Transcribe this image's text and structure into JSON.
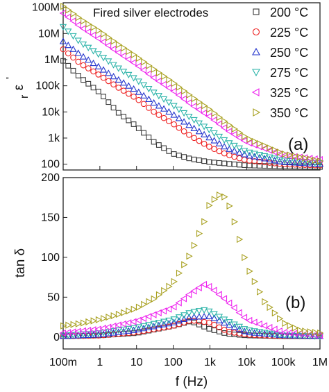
{
  "chart_data": [
    {
      "type": "scatter",
      "panel_label": "(a)",
      "ylabel_main": "ε",
      "ylabel_sub": "r",
      "ylabel_sup": "'",
      "annotation": "Fired silver electrodes",
      "x_scale": "log",
      "y_scale": "log",
      "xlim": [
        0.1,
        1000000
      ],
      "ylim": [
        60,
        150000000
      ],
      "y_ticks": [
        {
          "value": 100,
          "label": "100"
        },
        {
          "value": 1000,
          "label": "1k"
        },
        {
          "value": 10000,
          "label": "10k"
        },
        {
          "value": 100000,
          "label": "100k"
        },
        {
          "value": 1000000,
          "label": "1M"
        },
        {
          "value": 10000000,
          "label": "10M"
        },
        {
          "value": 100000000,
          "label": "100M"
        }
      ],
      "legend_placement": "top-right",
      "series": [
        {
          "name": "200 °C",
          "marker": "square",
          "color": "#3a3a3a",
          "x": [
            0.1,
            0.3,
            1,
            3,
            10,
            30,
            100,
            300,
            1000,
            10000,
            100000,
            1000000
          ],
          "y": [
            900000,
            200000,
            55000,
            10000,
            2800,
            700,
            250,
            160,
            120,
            90,
            82,
            78
          ]
        },
        {
          "name": "225 °C",
          "marker": "circle",
          "color": "#ee2222",
          "x": [
            0.1,
            0.3,
            1,
            3,
            10,
            30,
            100,
            300,
            1000,
            3000,
            10000,
            100000,
            1000000
          ],
          "y": [
            2500000,
            700000,
            250000,
            90000,
            33000,
            10000,
            3500,
            1200,
            450,
            230,
            140,
            100,
            90
          ]
        },
        {
          "name": "250 °C",
          "marker": "triangle-up",
          "color": "#2233cc",
          "x": [
            0.1,
            0.3,
            1,
            3,
            10,
            30,
            100,
            300,
            1000,
            3000,
            10000,
            100000,
            1000000
          ],
          "y": [
            5000000,
            1500000,
            500000,
            180000,
            65000,
            22000,
            8000,
            2800,
            1000,
            400,
            220,
            120,
            100
          ]
        },
        {
          "name": "275 °C",
          "marker": "triangle-down",
          "color": "#2ab3a8",
          "x": [
            0.1,
            0.3,
            1,
            3,
            10,
            30,
            100,
            300,
            1000,
            3000,
            10000,
            100000,
            1000000
          ],
          "y": [
            18000000,
            4500000,
            1500000,
            500000,
            170000,
            55000,
            18000,
            6000,
            2000,
            700,
            300,
            140,
            110
          ]
        },
        {
          "name": "325 °C",
          "marker": "triangle-left",
          "color": "#ee22ee",
          "x": [
            0.1,
            0.3,
            1,
            3,
            10,
            30,
            100,
            300,
            1000,
            3000,
            10000,
            100000,
            1000000
          ],
          "y": [
            60000000,
            18000000,
            6000000,
            2000000,
            650000,
            200000,
            65000,
            20000,
            6500,
            2000,
            700,
            220,
            150
          ]
        },
        {
          "name": "350 °C",
          "marker": "triangle-right",
          "color": "#a8a020",
          "x": [
            0.1,
            0.3,
            1,
            3,
            10,
            30,
            100,
            300,
            1000,
            3000,
            10000,
            100000,
            1000000
          ],
          "y": [
            110000000,
            35000000,
            12000000,
            4000000,
            1300000,
            420000,
            130000,
            40000,
            12000,
            3500,
            1000,
            250,
            130
          ]
        }
      ]
    },
    {
      "type": "scatter",
      "panel_label": "(b)",
      "ylabel": "tan δ",
      "xlabel": "f (Hz)",
      "x_scale": "log",
      "xlim": [
        0.1,
        1000000
      ],
      "ylim": [
        -15,
        200
      ],
      "x_ticks": [
        {
          "value": 0.1,
          "label": "100m"
        },
        {
          "value": 1,
          "label": "1"
        },
        {
          "value": 10,
          "label": "10"
        },
        {
          "value": 100,
          "label": "100"
        },
        {
          "value": 1000,
          "label": "1k"
        },
        {
          "value": 10000,
          "label": "10k"
        },
        {
          "value": 100000,
          "label": "100k"
        },
        {
          "value": 1000000,
          "label": "1M"
        }
      ],
      "y_ticks": [
        {
          "value": 0,
          "label": "0"
        },
        {
          "value": 50,
          "label": "50"
        },
        {
          "value": 100,
          "label": "100"
        },
        {
          "value": 150,
          "label": "150"
        },
        {
          "value": 200,
          "label": "200"
        }
      ],
      "series": [
        {
          "name": "200 °C",
          "marker": "square",
          "color": "#3a3a3a",
          "x": [
            0.1,
            1,
            10,
            100,
            300,
            1000,
            3000,
            10000,
            100000,
            1000000
          ],
          "y": [
            1,
            2,
            5,
            14,
            20,
            10,
            4,
            2,
            1,
            1
          ]
        },
        {
          "name": "225 °C",
          "marker": "circle",
          "color": "#ee2222",
          "x": [
            0.1,
            1,
            10,
            100,
            300,
            1000,
            3000,
            10000,
            100000,
            1000000
          ],
          "y": [
            1,
            2,
            6,
            14,
            21,
            18,
            7,
            3,
            1,
            1
          ]
        },
        {
          "name": "250 °C",
          "marker": "triangle-up",
          "color": "#2233cc",
          "x": [
            0.1,
            1,
            10,
            100,
            300,
            1000,
            3000,
            10000,
            100000,
            1000000
          ],
          "y": [
            1,
            3,
            9,
            18,
            25,
            26,
            16,
            6,
            2,
            1
          ]
        },
        {
          "name": "275 °C",
          "marker": "triangle-down",
          "color": "#2ab3a8",
          "x": [
            0.1,
            1,
            10,
            100,
            300,
            700,
            1000,
            3000,
            10000,
            100000,
            1000000
          ],
          "y": [
            2,
            5,
            12,
            22,
            31,
            34,
            32,
            20,
            9,
            2,
            1
          ]
        },
        {
          "name": "325 °C",
          "marker": "triangle-left",
          "color": "#ee22ee",
          "x": [
            0.1,
            1,
            10,
            100,
            300,
            700,
            1000,
            3000,
            10000,
            100000,
            1000000
          ],
          "y": [
            5,
            10,
            20,
            37,
            55,
            66,
            63,
            45,
            22,
            6,
            2
          ]
        },
        {
          "name": "350 °C",
          "marker": "triangle-right",
          "color": "#a8a020",
          "x": [
            0.1,
            0.3,
            1,
            3,
            10,
            30,
            100,
            300,
            700,
            1000,
            2000,
            3000,
            5000,
            10000,
            30000,
            100000,
            300000,
            1000000
          ],
          "y": [
            14,
            17,
            22,
            28,
            36,
            48,
            68,
            105,
            145,
            168,
            180,
            172,
            140,
            90,
            45,
            18,
            8,
            5
          ]
        }
      ]
    }
  ]
}
